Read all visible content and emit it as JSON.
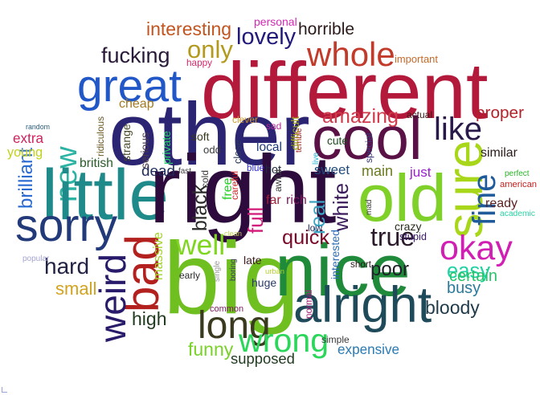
{
  "words": [
    {
      "text": "different",
      "color": "#b3193a"
    },
    {
      "text": "other",
      "color": "#2b2472"
    },
    {
      "text": "great",
      "color": "#2257c7"
    },
    {
      "text": "new",
      "color": "#2bb3a3"
    },
    {
      "text": "little",
      "color": "#1f8a8a"
    },
    {
      "text": "right",
      "color": "#2d0b3d"
    },
    {
      "text": "cool",
      "color": "#5a1146"
    },
    {
      "text": "big",
      "color": "#6ebf1f"
    },
    {
      "text": "nice",
      "color": "#1f8a3a"
    },
    {
      "text": "sorry",
      "color": "#223a7a"
    },
    {
      "text": "bad",
      "color": "#b3211f"
    },
    {
      "text": "old",
      "color": "#7fd12a"
    },
    {
      "text": "sure",
      "color": "#a8d619"
    },
    {
      "text": "fine",
      "color": "#1f5a9a"
    },
    {
      "text": "alright",
      "color": "#1f4a5a"
    },
    {
      "text": "whole",
      "color": "#c23a2a"
    },
    {
      "text": "weird",
      "color": "#2a1a6a"
    },
    {
      "text": "long",
      "color": "#3a3a1f"
    },
    {
      "text": "well",
      "color": "#7fd61f"
    },
    {
      "text": "okay",
      "color": "#d11fb3"
    },
    {
      "text": "like",
      "color": "#2a1a4a"
    },
    {
      "text": "wrong",
      "color": "#2bd65a"
    },
    {
      "text": "true",
      "color": "#2a1a2a"
    },
    {
      "text": "lovely",
      "color": "#221a7a"
    },
    {
      "text": "only",
      "color": "#b39a1f"
    },
    {
      "text": "fucking",
      "color": "#2a1a3a"
    },
    {
      "text": "interesting",
      "color": "#c2551f"
    },
    {
      "text": "horrible",
      "color": "#2a1a1a"
    },
    {
      "text": "amazing",
      "color": "#d13a4a"
    },
    {
      "text": "proper",
      "color": "#b3212a"
    },
    {
      "text": "quick",
      "color": "#7a0a2a"
    },
    {
      "text": "black",
      "color": "#2a2a2a"
    },
    {
      "text": "full",
      "color": "#d1197a"
    },
    {
      "text": "real",
      "color": "#3aa3c2"
    },
    {
      "text": "white",
      "color": "#3a1a5a"
    },
    {
      "text": "hard",
      "color": "#222244"
    },
    {
      "text": "small",
      "color": "#d1a31f"
    },
    {
      "text": "funny",
      "color": "#7ad12a"
    },
    {
      "text": "high",
      "color": "#1f3a1f"
    },
    {
      "text": "poor",
      "color": "#1f1f2a"
    },
    {
      "text": "easy",
      "color": "#1fd1a3"
    },
    {
      "text": "certain",
      "color": "#2ac26a"
    },
    {
      "text": "busy",
      "color": "#2a7a9a"
    },
    {
      "text": "bloody",
      "color": "#1f3a4a"
    },
    {
      "text": "massive",
      "color": "#a3d12a"
    },
    {
      "text": "expensive",
      "color": "#2a7ab3"
    },
    {
      "text": "supposed",
      "color": "#1f3a1f"
    },
    {
      "text": "brilliant",
      "color": "#2a6ad1"
    },
    {
      "text": "young",
      "color": "#c2d119"
    },
    {
      "text": "extra",
      "color": "#d11f5a"
    },
    {
      "text": "cheap",
      "color": "#a37a1f"
    },
    {
      "text": "dead",
      "color": "#1f2a5a"
    },
    {
      "text": "similar",
      "color": "#2a1a1a"
    },
    {
      "text": "main",
      "color": "#6a7a1f"
    },
    {
      "text": "sweet",
      "color": "#1f4a7a"
    },
    {
      "text": "just",
      "color": "#9a1fd1"
    },
    {
      "text": "ready",
      "color": "#5a1f1f"
    },
    {
      "text": "american",
      "color": "#c21f1f"
    },
    {
      "text": "cute",
      "color": "#1f4a1f"
    },
    {
      "text": "local",
      "color": "#1f3a7a"
    },
    {
      "text": "hot",
      "color": "#1f2a3a"
    },
    {
      "text": "british",
      "color": "#2a5a2a"
    },
    {
      "text": "crazy",
      "color": "#2a2a1f"
    },
    {
      "text": "stupid",
      "color": "#3a1a6a"
    },
    {
      "text": "huge",
      "color": "#2a3a6a"
    },
    {
      "text": "normal",
      "color": "#a31f7a"
    },
    {
      "text": "interested",
      "color": "#2a6ab3"
    },
    {
      "text": "important",
      "color": "#c26a2a"
    },
    {
      "text": "personal",
      "color": "#d12ab3"
    },
    {
      "text": "happy",
      "color": "#d12a6a"
    },
    {
      "text": "random",
      "color": "#2a5a7a"
    },
    {
      "text": "ridiculous",
      "color": "#6a5a1f"
    },
    {
      "text": "strange",
      "color": "#4a4a2a"
    },
    {
      "text": "serious",
      "color": "#4a3a4a"
    },
    {
      "text": "private",
      "color": "#2ad16a"
    },
    {
      "text": "soft",
      "color": "#3a3a1f"
    },
    {
      "text": "odd",
      "color": "#3a3a3a"
    },
    {
      "text": "clever",
      "color": "#d19a2a"
    },
    {
      "text": "sad",
      "color": "#b32a9a"
    },
    {
      "text": "terrible",
      "color": "#a3191f"
    },
    {
      "text": "difficult",
      "color": "#a3a31f"
    },
    {
      "text": "actual",
      "color": "#3a1a1a"
    },
    {
      "text": "special",
      "color": "#3a3a7a"
    },
    {
      "text": "live",
      "color": "#2ab3d1"
    },
    {
      "text": "close",
      "color": "#2a3a5a"
    },
    {
      "text": "blue",
      "color": "#2a2ad1"
    },
    {
      "text": "free",
      "color": "#2ad12a"
    },
    {
      "text": "careful",
      "color": "#d12a2a"
    },
    {
      "text": "awful",
      "color": "#3a3a3a"
    },
    {
      "text": "cold",
      "color": "#3a3a3a"
    },
    {
      "text": "fast",
      "color": "#3a3a3a"
    },
    {
      "text": "far",
      "color": "#a31f3a"
    },
    {
      "text": "rich",
      "color": "#7a1a5a"
    },
    {
      "text": "low",
      "color": "#1f2a5a"
    },
    {
      "text": "mad",
      "color": "#3a3a3a"
    },
    {
      "text": "perfect",
      "color": "#2ab32a"
    },
    {
      "text": "academic",
      "color": "#2ad1a3"
    },
    {
      "text": "clean",
      "color": "#c2d15a"
    },
    {
      "text": "late",
      "color": "#3a1a1a"
    },
    {
      "text": "single",
      "color": "#9a9a9a"
    },
    {
      "text": "boring",
      "color": "#3a3a5a"
    },
    {
      "text": "popular",
      "color": "#a3a3d1"
    },
    {
      "text": "early",
      "color": "#2a2a2a"
    },
    {
      "text": "urban",
      "color": "#b3d12a"
    },
    {
      "text": "common",
      "color": "#7a1a5a"
    },
    {
      "text": "short",
      "color": "#2a1a1a"
    },
    {
      "text": "simple",
      "color": "#3a3a3a"
    }
  ]
}
